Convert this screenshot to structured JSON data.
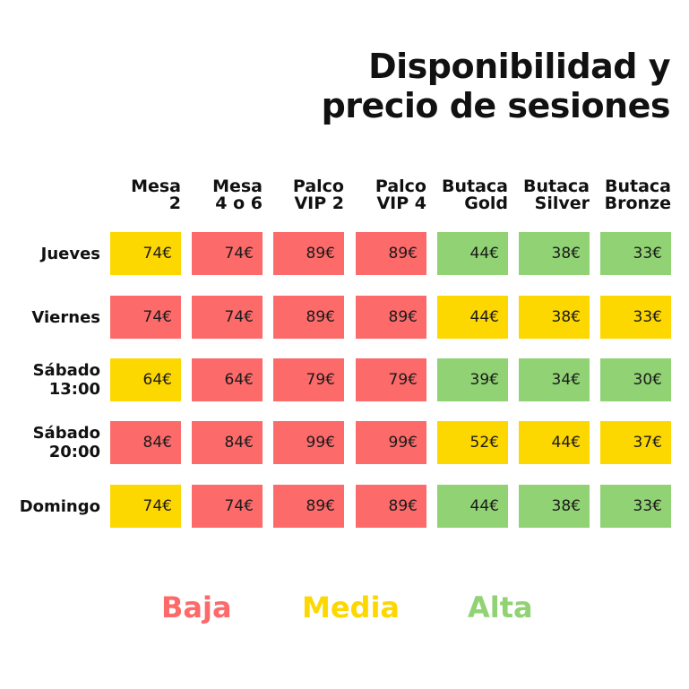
{
  "title": [
    "Disponibilidad y",
    "precio de sesiones"
  ],
  "colors": {
    "Baja": "#fc6a6a",
    "Media": "#fdd700",
    "Alta": "#90d274"
  },
  "chart_data": {
    "type": "heatmap",
    "columns": [
      [
        "Mesa",
        "2"
      ],
      [
        "Mesa",
        "4 o 6"
      ],
      [
        "Palco",
        "VIP 2"
      ],
      [
        "Palco",
        "VIP 4"
      ],
      [
        "Butaca",
        "Gold"
      ],
      [
        "Butaca",
        "Silver"
      ],
      [
        "Butaca",
        "Bronze"
      ]
    ],
    "rows": [
      {
        "label": [
          "Jueves"
        ],
        "prices": [
          "74€",
          "74€",
          "89€",
          "89€",
          "44€",
          "38€",
          "33€"
        ],
        "availability": [
          "Media",
          "Baja",
          "Baja",
          "Baja",
          "Alta",
          "Alta",
          "Alta"
        ]
      },
      {
        "label": [
          "Viernes"
        ],
        "prices": [
          "74€",
          "74€",
          "89€",
          "89€",
          "44€",
          "38€",
          "33€"
        ],
        "availability": [
          "Baja",
          "Baja",
          "Baja",
          "Baja",
          "Media",
          "Media",
          "Media"
        ]
      },
      {
        "label": [
          "Sábado",
          "13:00"
        ],
        "prices": [
          "64€",
          "64€",
          "79€",
          "79€",
          "39€",
          "34€",
          "30€"
        ],
        "availability": [
          "Media",
          "Baja",
          "Baja",
          "Baja",
          "Alta",
          "Alta",
          "Alta"
        ]
      },
      {
        "label": [
          "Sábado",
          "20:00"
        ],
        "prices": [
          "84€",
          "84€",
          "99€",
          "99€",
          "52€",
          "44€",
          "37€"
        ],
        "availability": [
          "Baja",
          "Baja",
          "Baja",
          "Baja",
          "Media",
          "Media",
          "Media"
        ]
      },
      {
        "label": [
          "Domingo"
        ],
        "prices": [
          "74€",
          "74€",
          "89€",
          "89€",
          "44€",
          "38€",
          "33€"
        ],
        "availability": [
          "Media",
          "Baja",
          "Baja",
          "Baja",
          "Alta",
          "Alta",
          "Alta"
        ]
      }
    ],
    "legend": [
      "Baja",
      "Media",
      "Alta"
    ]
  }
}
